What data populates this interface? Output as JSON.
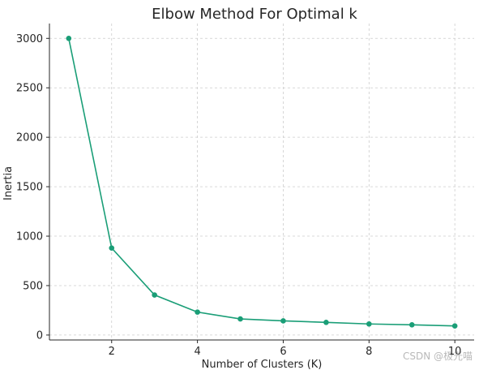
{
  "chart_data": {
    "type": "line",
    "title": "Elbow Method For Optimal k",
    "xlabel": "Number of Clusters (K)",
    "ylabel": "Inertia",
    "xlim": [
      0.55,
      10.45
    ],
    "ylim": [
      -50,
      3150
    ],
    "xticks": [
      2,
      4,
      6,
      8,
      10
    ],
    "yticks": [
      0,
      500,
      1000,
      1500,
      2000,
      2500,
      3000
    ],
    "grid": true,
    "grid_style": "dashed",
    "series": [
      {
        "x": [
          1,
          2,
          3,
          4,
          5,
          6,
          7,
          8,
          9,
          10
        ],
        "values": [
          3000,
          880,
          405,
          232,
          163,
          143,
          128,
          112,
          103,
          92
        ],
        "color": "#1a9e77",
        "marker": "circle"
      }
    ]
  },
  "watermark": "CSDN @极光喵"
}
